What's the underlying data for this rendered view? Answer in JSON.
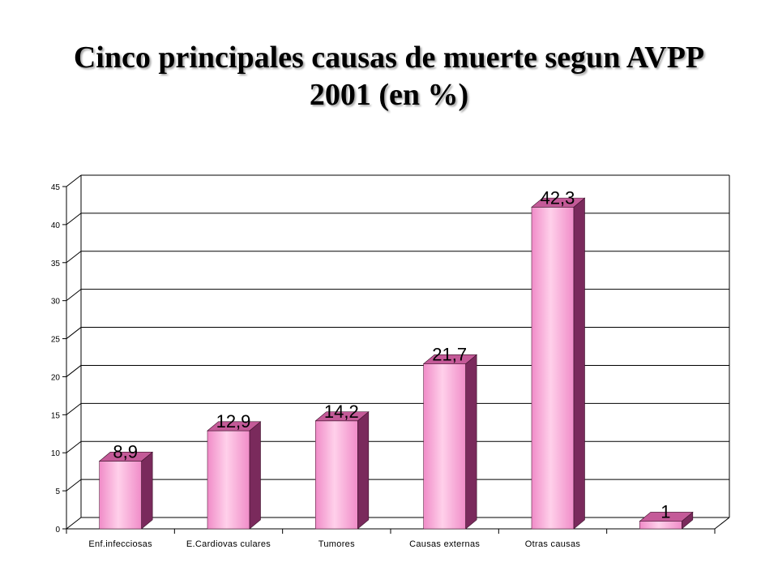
{
  "page": {
    "title_line1": "Cinco principales causas de muerte segun AVPP",
    "title_line2": "2001 (en %)"
  },
  "colors": {
    "bar_front": "#f08cc8",
    "bar_highlight": "#ffd0ea",
    "bar_side": "#7a2a5c",
    "bar_top": "#c45a98",
    "grid": "#000000"
  },
  "chart_data": {
    "type": "bar",
    "title": "Cinco principales causas de muerte segun AVPP 2001 (en %)",
    "categories": [
      "Enf.infecciosas",
      "E.Cardiovasculares",
      "Tumores",
      "Causas externas",
      "Otras causas",
      ""
    ],
    "values": [
      8.9,
      12.9,
      14.2,
      21.7,
      42.3,
      1
    ],
    "data_labels": [
      "8,9",
      "12,9",
      "14,2",
      "21,7",
      "42,3",
      "1"
    ],
    "category_labels_display": [
      "Enf.infecciosas",
      "E.Cardiovas culares",
      "Tumores",
      "Causas externas",
      "Otras causas",
      ""
    ],
    "ylim": [
      0,
      45
    ],
    "yticks": [
      "0",
      "5",
      "10",
      "15",
      "20",
      "25",
      "30",
      "35",
      "40",
      "45"
    ],
    "xlabel": "",
    "ylabel": "",
    "grid": true,
    "legend": "none",
    "style": "3d-cylinder"
  }
}
